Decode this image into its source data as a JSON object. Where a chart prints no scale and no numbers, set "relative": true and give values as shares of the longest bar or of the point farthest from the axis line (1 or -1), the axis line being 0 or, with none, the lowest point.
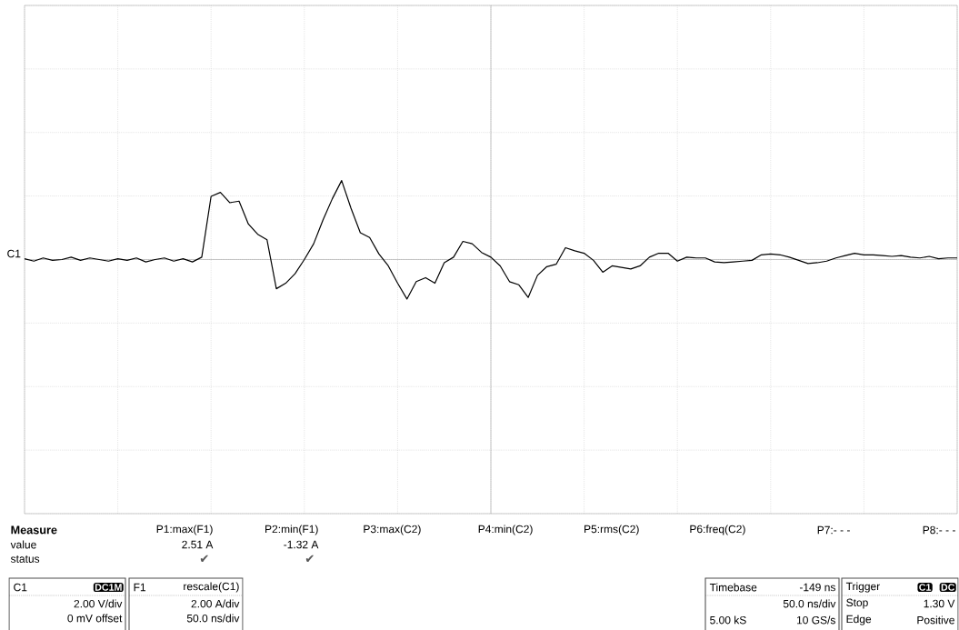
{
  "chart_data": {
    "type": "line",
    "relative": true,
    "grid": true,
    "categories": [
      null,
      null,
      null,
      null,
      null,
      null,
      null,
      null,
      null,
      null,
      null,
      null,
      null,
      null,
      null,
      null,
      null,
      null,
      null,
      null,
      null,
      null,
      null,
      null,
      null,
      null,
      null,
      null,
      null,
      null,
      null,
      null,
      null,
      null,
      null,
      null,
      null,
      null,
      null,
      null,
      null,
      null,
      null,
      null,
      null,
      null,
      null,
      null,
      null,
      null,
      null,
      null,
      null,
      null,
      null,
      null,
      null,
      null,
      null,
      null,
      null,
      null,
      null,
      null,
      null,
      null,
      null,
      null,
      null,
      null,
      null,
      null,
      null,
      null,
      null,
      null,
      null,
      null,
      null,
      null,
      null,
      null,
      null,
      null,
      null,
      null,
      null,
      null,
      null,
      null,
      null,
      null,
      null,
      null,
      null,
      null,
      null,
      null,
      null,
      null,
      null
    ],
    "series": [
      {
        "color": "#000000",
        "values": [
          0.01,
          -0.02,
          0.02,
          -0.01,
          0,
          0.03,
          -0.01,
          0.02,
          0,
          -0.02,
          0.01,
          -0.01,
          0.02,
          -0.03,
          0,
          0.02,
          -0.02,
          0.01,
          -0.03,
          0.03,
          0.8,
          0.85,
          0.72,
          0.74,
          0.45,
          0.32,
          0.25,
          -0.37,
          -0.3,
          -0.18,
          0,
          0.2,
          0.5,
          0.77,
          1,
          0.65,
          0.34,
          0.28,
          0.07,
          -0.08,
          -0.3,
          -0.5,
          -0.28,
          -0.23,
          -0.3,
          -0.04,
          0.03,
          0.23,
          0.2,
          0.09,
          0.03,
          -0.08,
          -0.28,
          -0.32,
          -0.48,
          -0.2,
          -0.09,
          -0.06,
          0.15,
          0.11,
          0.08,
          -0.01,
          -0.16,
          -0.08,
          -0.1,
          -0.12,
          -0.08,
          0.03,
          0.08,
          0.08,
          -0.02,
          0.03,
          0.02,
          0.02,
          -0.03,
          -0.04,
          -0.03,
          -0.02,
          -0.01,
          0.06,
          0.07,
          0.06,
          0.03,
          -0.01,
          -0.05,
          -0.04,
          -0.02,
          0.02,
          0.05,
          0.08,
          0.06,
          0.06,
          0.05,
          0.04,
          0.05,
          0.03,
          0.02,
          0.04,
          0.01,
          0.02,
          0.02
        ]
      }
    ],
    "annotations": [
      "Measure",
      "value",
      "status",
      "P1:max(F1)",
      "2.51 A",
      "✔",
      "P2:min(F1)",
      "-1.32 A",
      "✔",
      "P3:max(C2)",
      "P4:min(C2)",
      "P5:rms(C2)",
      "P6:freq(C2)",
      "P7:- - -",
      "P8:- - -",
      "C1",
      "DC1M",
      "2.00 V/div",
      "0 mV offset",
      "F1",
      "rescale(C1)",
      "2.00 A/div",
      "50.0 ns/div",
      "Timebase",
      "-149 ns",
      "50.0 ns/div",
      "5.00 kS",
      "10 GS/s",
      "Trigger",
      "C1",
      "DC",
      "Stop",
      "1.30 V",
      "Edge",
      "Positive",
      "C1"
    ]
  }
}
